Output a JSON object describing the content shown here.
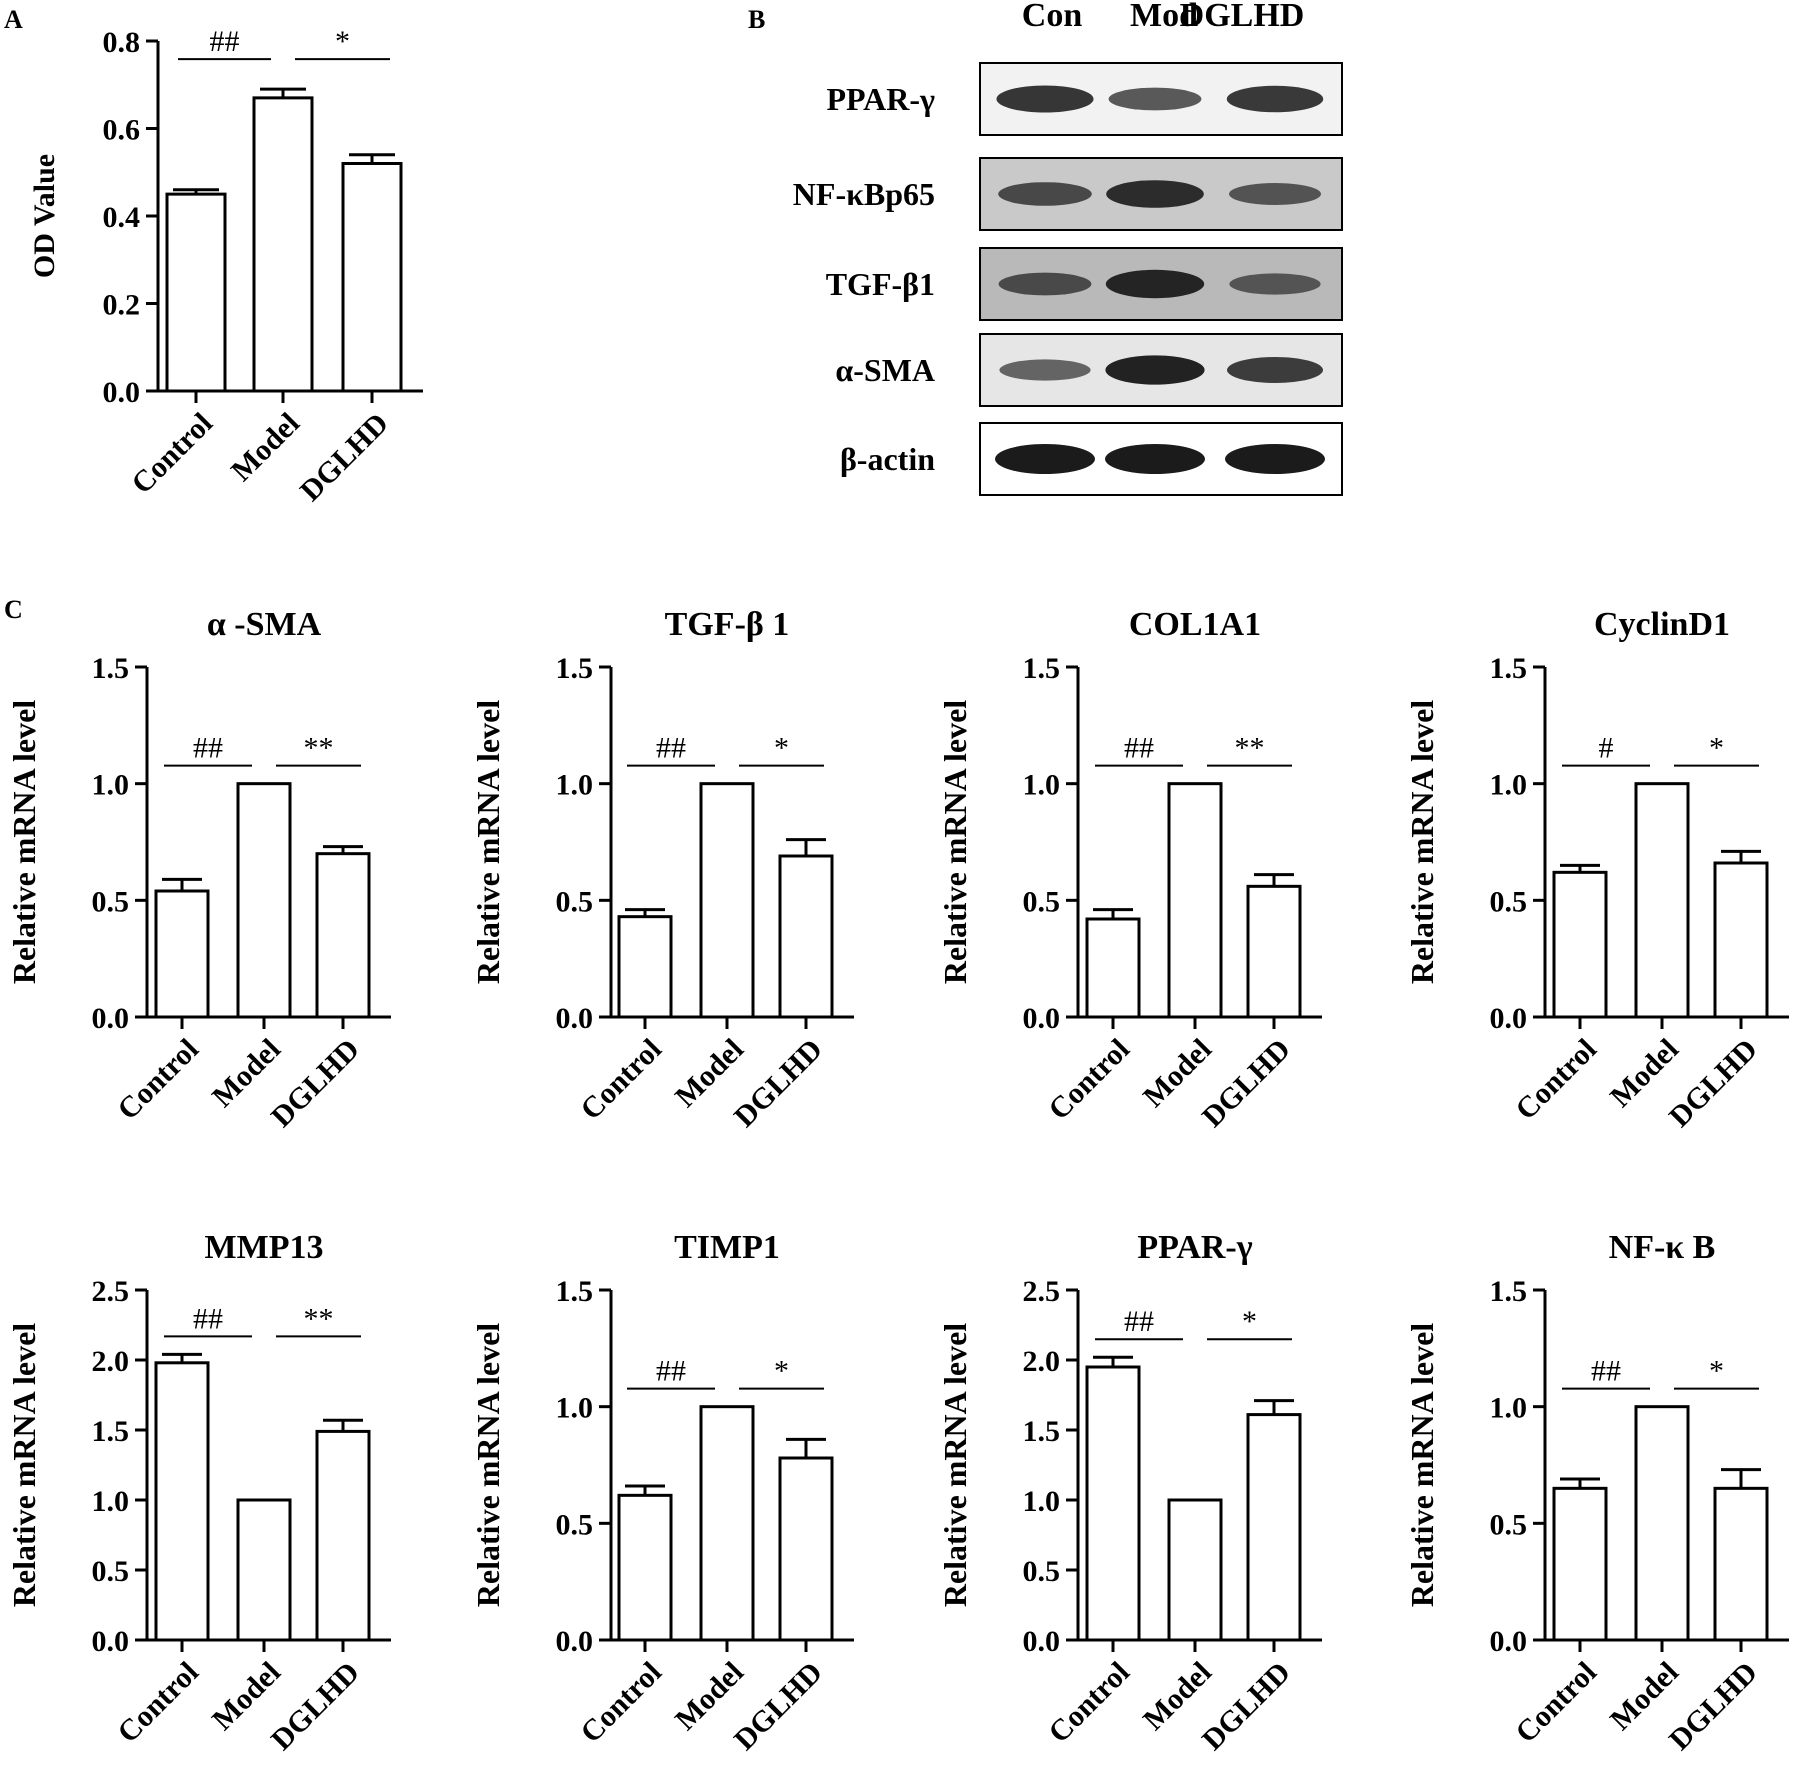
{
  "panel_labels": {
    "A": "A",
    "B": "B",
    "C": "C"
  },
  "western_blot": {
    "lanes": [
      "Con",
      "Mod",
      "DGLHD"
    ],
    "rows": [
      {
        "label": "PPAR-γ",
        "intensities": [
          0.82,
          0.55,
          0.78
        ],
        "background": "#f2f2f2"
      },
      {
        "label": "NF-κBp65",
        "intensities": [
          0.6,
          0.85,
          0.5
        ],
        "background": "#c9c9c9"
      },
      {
        "label": "TGF-β1",
        "intensities": [
          0.55,
          0.9,
          0.45
        ],
        "background": "#b9b9b9"
      },
      {
        "label": "α-SMA",
        "intensities": [
          0.45,
          0.95,
          0.75
        ],
        "background": "#e6e6e6"
      },
      {
        "label": "β-actin",
        "intensities": [
          1.0,
          1.0,
          1.0
        ],
        "background": "#ffffff"
      }
    ]
  },
  "chart_data": [
    {
      "id": "A",
      "type": "bar",
      "title": "",
      "categories": [
        "Control",
        "Model",
        "DGLHD"
      ],
      "values": [
        0.45,
        0.67,
        0.52
      ],
      "errors": [
        0.01,
        0.02,
        0.02
      ],
      "ylabel": "OD Value",
      "ylim": [
        0,
        0.8
      ],
      "yticks": [
        "0.0",
        "0.2",
        "0.4",
        "0.6",
        "0.8"
      ],
      "significance": [
        {
          "pair": [
            0,
            1
          ],
          "label": "##"
        },
        {
          "pair": [
            1,
            2
          ],
          "label": "*"
        }
      ]
    },
    {
      "id": "C1",
      "type": "bar",
      "title": "α -SMA",
      "categories": [
        "Control",
        "Model",
        "DGLHD"
      ],
      "values": [
        0.54,
        1.0,
        0.7
      ],
      "errors": [
        0.05,
        0,
        0.03
      ],
      "ylabel": "Relative mRNA level",
      "ylim": [
        0,
        1.5
      ],
      "yticks": [
        "0.0",
        "0.5",
        "1.0",
        "1.5"
      ],
      "significance": [
        {
          "pair": [
            0,
            1
          ],
          "label": "##"
        },
        {
          "pair": [
            1,
            2
          ],
          "label": "**"
        }
      ]
    },
    {
      "id": "C2",
      "type": "bar",
      "title": "TGF-β 1",
      "categories": [
        "Control",
        "Model",
        "DGLHD"
      ],
      "values": [
        0.43,
        1.0,
        0.69
      ],
      "errors": [
        0.03,
        0,
        0.07
      ],
      "ylabel": "Relative mRNA level",
      "ylim": [
        0,
        1.5
      ],
      "yticks": [
        "0.0",
        "0.5",
        "1.0",
        "1.5"
      ],
      "significance": [
        {
          "pair": [
            0,
            1
          ],
          "label": "##"
        },
        {
          "pair": [
            1,
            2
          ],
          "label": "*"
        }
      ]
    },
    {
      "id": "C3",
      "type": "bar",
      "title": "COL1A1",
      "categories": [
        "Control",
        "Model",
        "DGLHD"
      ],
      "values": [
        0.42,
        1.0,
        0.56
      ],
      "errors": [
        0.04,
        0,
        0.05
      ],
      "ylabel": "Relative mRNA level",
      "ylim": [
        0,
        1.5
      ],
      "yticks": [
        "0.0",
        "0.5",
        "1.0",
        "1.5"
      ],
      "significance": [
        {
          "pair": [
            0,
            1
          ],
          "label": "##"
        },
        {
          "pair": [
            1,
            2
          ],
          "label": "**"
        }
      ]
    },
    {
      "id": "C4",
      "type": "bar",
      "title": "CyclinD1",
      "categories": [
        "Control",
        "Model",
        "DGLHD"
      ],
      "values": [
        0.62,
        1.0,
        0.66
      ],
      "errors": [
        0.03,
        0,
        0.05
      ],
      "ylabel": "Relative mRNA level",
      "ylim": [
        0,
        1.5
      ],
      "yticks": [
        "0.0",
        "0.5",
        "1.0",
        "1.5"
      ],
      "significance": [
        {
          "pair": [
            0,
            1
          ],
          "label": "#"
        },
        {
          "pair": [
            1,
            2
          ],
          "label": "*"
        }
      ]
    },
    {
      "id": "C5",
      "type": "bar",
      "title": "MMP13",
      "categories": [
        "Control",
        "Model",
        "DGLHD"
      ],
      "values": [
        1.98,
        1.0,
        1.49
      ],
      "errors": [
        0.06,
        0,
        0.08
      ],
      "ylabel": "Relative mRNA level",
      "ylim": [
        0,
        2.5
      ],
      "yticks": [
        "0.0",
        "0.5",
        "1.0",
        "1.5",
        "2.0",
        "2.5"
      ],
      "significance": [
        {
          "pair": [
            0,
            1
          ],
          "label": "##"
        },
        {
          "pair": [
            1,
            2
          ],
          "label": "**"
        }
      ]
    },
    {
      "id": "C6",
      "type": "bar",
      "title": "TIMP1",
      "categories": [
        "Control",
        "Model",
        "DGLHD"
      ],
      "values": [
        0.62,
        1.0,
        0.78
      ],
      "errors": [
        0.04,
        0,
        0.08
      ],
      "ylabel": "Relative mRNA level",
      "ylim": [
        0,
        1.5
      ],
      "yticks": [
        "0.0",
        "0.5",
        "1.0",
        "1.5"
      ],
      "significance": [
        {
          "pair": [
            0,
            1
          ],
          "label": "##"
        },
        {
          "pair": [
            1,
            2
          ],
          "label": "*"
        }
      ]
    },
    {
      "id": "C7",
      "type": "bar",
      "title": "PPAR-γ",
      "categories": [
        "Control",
        "Model",
        "DGLHD"
      ],
      "values": [
        1.95,
        1.0,
        1.61
      ],
      "errors": [
        0.07,
        0,
        0.1
      ],
      "ylabel": "Relative mRNA level",
      "ylim": [
        0,
        2.5
      ],
      "yticks": [
        "0.0",
        "0.5",
        "1.0",
        "1.5",
        "2.0",
        "2.5"
      ],
      "significance": [
        {
          "pair": [
            0,
            1
          ],
          "label": "##"
        },
        {
          "pair": [
            1,
            2
          ],
          "label": "*"
        }
      ]
    },
    {
      "id": "C8",
      "type": "bar",
      "title": "NF-κ B",
      "categories": [
        "Control",
        "Model",
        "DGLHD"
      ],
      "values": [
        0.65,
        1.0,
        0.65
      ],
      "errors": [
        0.04,
        0,
        0.08
      ],
      "ylabel": "Relative mRNA level",
      "ylim": [
        0,
        1.5
      ],
      "yticks": [
        "0.0",
        "0.5",
        "1.0",
        "1.5"
      ],
      "significance": [
        {
          "pair": [
            0,
            1
          ],
          "label": "##"
        },
        {
          "pair": [
            1,
            2
          ],
          "label": "*"
        }
      ]
    }
  ]
}
